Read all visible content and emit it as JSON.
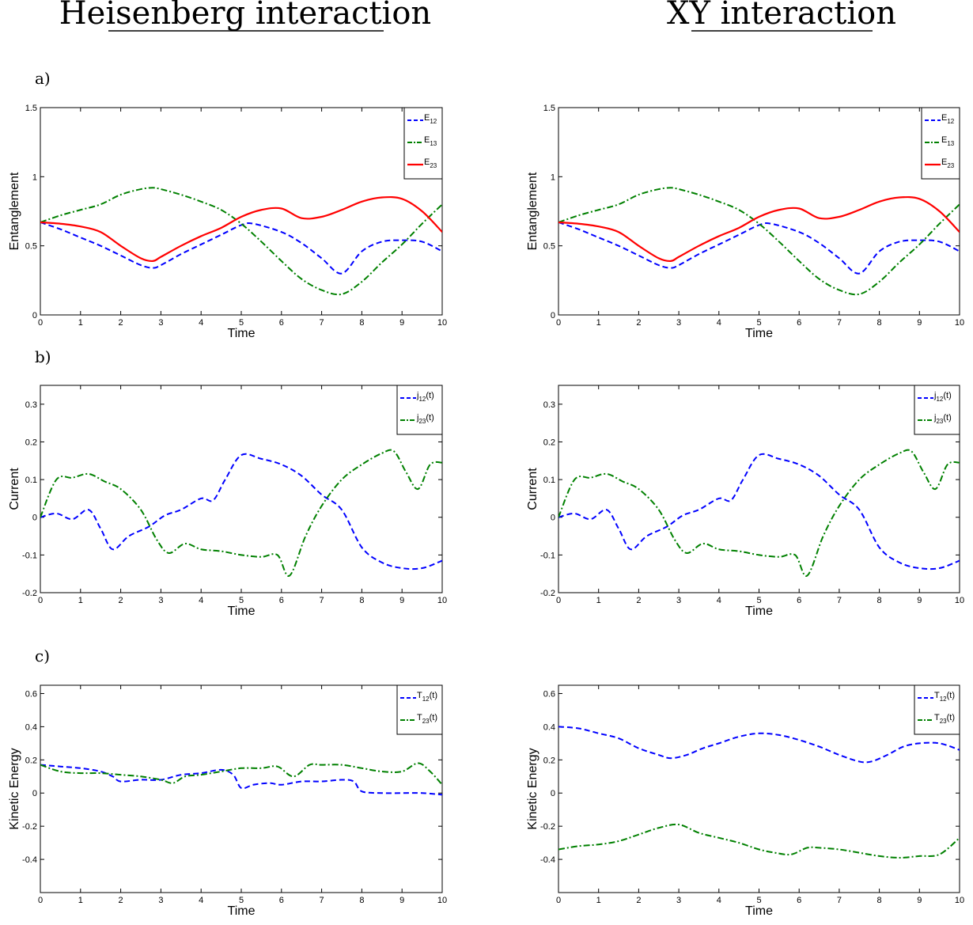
{
  "column_titles": [
    "Heisenberg interaction",
    "XY interaction"
  ],
  "panel_labels": [
    "a)",
    "b)",
    "c)"
  ],
  "chart_data": [
    {
      "type": "line",
      "id": "a-heis",
      "xlabel": "Time",
      "ylabel": "Entanglement",
      "xlim": [
        0,
        10
      ],
      "ylim": [
        0,
        1.5
      ],
      "xticks": [
        "0",
        "1",
        "2",
        "3",
        "4",
        "5",
        "6",
        "7",
        "8",
        "9",
        "10"
      ],
      "yticks": [
        "0",
        "0.5",
        "1",
        "1.5"
      ],
      "legend": "top-right",
      "series": [
        {
          "name": "E",
          "sub": "12",
          "color": "#0000ff",
          "dash": "dash",
          "x": [
            0,
            0.5,
            1,
            1.5,
            2,
            2.5,
            2.8,
            3,
            3.5,
            4,
            4.5,
            5,
            5.3,
            6,
            6.5,
            7,
            7.5,
            8,
            8.5,
            9,
            9.5,
            10
          ],
          "y": [
            0.67,
            0.62,
            0.56,
            0.5,
            0.43,
            0.36,
            0.34,
            0.36,
            0.44,
            0.51,
            0.58,
            0.65,
            0.66,
            0.6,
            0.52,
            0.41,
            0.3,
            0.46,
            0.53,
            0.54,
            0.53,
            0.46
          ]
        },
        {
          "name": "E",
          "sub": "13",
          "color": "#008000",
          "dash": "dashdot",
          "x": [
            0,
            0.5,
            1,
            1.5,
            2,
            2.5,
            2.8,
            3,
            3.5,
            4,
            4.5,
            5,
            5.5,
            6,
            6.5,
            7,
            7.5,
            8,
            8.5,
            9,
            9.5,
            10
          ],
          "y": [
            0.67,
            0.72,
            0.76,
            0.8,
            0.87,
            0.91,
            0.92,
            0.91,
            0.87,
            0.82,
            0.76,
            0.66,
            0.53,
            0.39,
            0.26,
            0.18,
            0.15,
            0.24,
            0.38,
            0.51,
            0.66,
            0.8
          ]
        },
        {
          "name": "E",
          "sub": "23",
          "color": "#ff0000",
          "dash": "solid",
          "x": [
            0,
            0.5,
            1,
            1.5,
            2,
            2.5,
            2.8,
            3,
            3.5,
            4,
            4.5,
            5,
            5.5,
            6,
            6.5,
            7,
            7.5,
            8,
            8.5,
            9,
            9.5,
            10
          ],
          "y": [
            0.67,
            0.66,
            0.64,
            0.6,
            0.5,
            0.41,
            0.39,
            0.42,
            0.5,
            0.57,
            0.63,
            0.71,
            0.76,
            0.77,
            0.7,
            0.71,
            0.76,
            0.82,
            0.85,
            0.84,
            0.75,
            0.6
          ]
        }
      ]
    },
    {
      "type": "line",
      "id": "a-xy",
      "xlabel": "Time",
      "ylabel": "Entanglement",
      "xlim": [
        0,
        10
      ],
      "ylim": [
        0,
        1.5
      ],
      "xticks": [
        "0",
        "1",
        "2",
        "3",
        "4",
        "5",
        "6",
        "7",
        "8",
        "9",
        "10"
      ],
      "yticks": [
        "0",
        "0.5",
        "1",
        "1.5"
      ],
      "legend": "top-right",
      "series": [
        {
          "name": "E",
          "sub": "12",
          "color": "#0000ff",
          "dash": "dash",
          "x": [
            0,
            0.5,
            1,
            1.5,
            2,
            2.5,
            2.8,
            3,
            3.5,
            4,
            4.5,
            5,
            5.3,
            6,
            6.5,
            7,
            7.5,
            8,
            8.5,
            9,
            9.5,
            10
          ],
          "y": [
            0.67,
            0.62,
            0.56,
            0.5,
            0.43,
            0.36,
            0.34,
            0.36,
            0.44,
            0.51,
            0.58,
            0.65,
            0.66,
            0.6,
            0.52,
            0.41,
            0.3,
            0.46,
            0.53,
            0.54,
            0.53,
            0.46
          ]
        },
        {
          "name": "E",
          "sub": "13",
          "color": "#008000",
          "dash": "dashdot",
          "x": [
            0,
            0.5,
            1,
            1.5,
            2,
            2.5,
            2.8,
            3,
            3.5,
            4,
            4.5,
            5,
            5.5,
            6,
            6.5,
            7,
            7.5,
            8,
            8.5,
            9,
            9.5,
            10
          ],
          "y": [
            0.67,
            0.72,
            0.76,
            0.8,
            0.87,
            0.91,
            0.92,
            0.91,
            0.87,
            0.82,
            0.76,
            0.66,
            0.53,
            0.39,
            0.26,
            0.18,
            0.15,
            0.24,
            0.38,
            0.51,
            0.66,
            0.8
          ]
        },
        {
          "name": "E",
          "sub": "23",
          "color": "#ff0000",
          "dash": "solid",
          "x": [
            0,
            0.5,
            1,
            1.5,
            2,
            2.5,
            2.8,
            3,
            3.5,
            4,
            4.5,
            5,
            5.5,
            6,
            6.5,
            7,
            7.5,
            8,
            8.5,
            9,
            9.5,
            10
          ],
          "y": [
            0.67,
            0.66,
            0.64,
            0.6,
            0.5,
            0.41,
            0.39,
            0.42,
            0.5,
            0.57,
            0.63,
            0.71,
            0.76,
            0.77,
            0.7,
            0.71,
            0.76,
            0.82,
            0.85,
            0.84,
            0.75,
            0.6
          ]
        }
      ]
    },
    {
      "type": "line",
      "id": "b-heis",
      "xlabel": "Time",
      "ylabel": "Current",
      "xlim": [
        0,
        10
      ],
      "ylim": [
        -0.2,
        0.35
      ],
      "xticks": [
        "0",
        "1",
        "2",
        "3",
        "4",
        "5",
        "6",
        "7",
        "8",
        "9",
        "10"
      ],
      "yticks": [
        "-0.2",
        "-0.1",
        "0",
        "0.1",
        "0.2",
        "0.3"
      ],
      "legend": "top-right",
      "series": [
        {
          "name": "j",
          "sub": "12",
          "suffix": "(t)",
          "color": "#0000ff",
          "dash": "dash",
          "x": [
            0,
            0.4,
            0.8,
            1.2,
            1.5,
            1.8,
            2.2,
            2.7,
            3.1,
            3.5,
            4,
            4.3,
            4.6,
            5,
            5.5,
            6,
            6.5,
            7,
            7.5,
            8,
            8.5,
            9,
            9.5,
            10
          ],
          "y": [
            0,
            0.01,
            -0.005,
            0.02,
            -0.03,
            -0.085,
            -0.05,
            -0.025,
            0.005,
            0.02,
            0.05,
            0.045,
            0.1,
            0.165,
            0.155,
            0.14,
            0.11,
            0.06,
            0.02,
            -0.08,
            -0.12,
            -0.135,
            -0.135,
            -0.115
          ]
        },
        {
          "name": "j",
          "sub": "23",
          "suffix": "(t)",
          "color": "#008000",
          "dash": "dashdot",
          "x": [
            0,
            0.4,
            0.8,
            1.2,
            1.6,
            2,
            2.5,
            2.9,
            3.2,
            3.6,
            4,
            4.5,
            5,
            5.5,
            5.9,
            6.2,
            6.6,
            7,
            7.5,
            8,
            8.5,
            8.8,
            9.1,
            9.4,
            9.7,
            10
          ],
          "y": [
            0,
            0.1,
            0.105,
            0.115,
            0.095,
            0.075,
            0.02,
            -0.06,
            -0.095,
            -0.07,
            -0.085,
            -0.09,
            -0.1,
            -0.105,
            -0.1,
            -0.155,
            -0.05,
            0.03,
            0.1,
            0.14,
            0.17,
            0.175,
            0.12,
            0.075,
            0.14,
            0.145
          ]
        }
      ]
    },
    {
      "type": "line",
      "id": "b-xy",
      "xlabel": "Time",
      "ylabel": "Current",
      "xlim": [
        0,
        10
      ],
      "ylim": [
        -0.2,
        0.35
      ],
      "xticks": [
        "0",
        "1",
        "2",
        "3",
        "4",
        "5",
        "6",
        "7",
        "8",
        "9",
        "10"
      ],
      "yticks": [
        "-0.2",
        "-0.1",
        "0",
        "0.1",
        "0.2",
        "0.3"
      ],
      "legend": "top-right",
      "series": [
        {
          "name": "j",
          "sub": "12",
          "suffix": "(t)",
          "color": "#0000ff",
          "dash": "dash",
          "x": [
            0,
            0.4,
            0.8,
            1.2,
            1.5,
            1.8,
            2.2,
            2.7,
            3.1,
            3.5,
            4,
            4.3,
            4.6,
            5,
            5.5,
            6,
            6.5,
            7,
            7.5,
            8,
            8.5,
            9,
            9.5,
            10
          ],
          "y": [
            0,
            0.01,
            -0.005,
            0.02,
            -0.03,
            -0.085,
            -0.05,
            -0.025,
            0.005,
            0.02,
            0.05,
            0.045,
            0.1,
            0.165,
            0.155,
            0.14,
            0.11,
            0.06,
            0.02,
            -0.08,
            -0.12,
            -0.135,
            -0.135,
            -0.115
          ]
        },
        {
          "name": "j",
          "sub": "23",
          "suffix": "(t)",
          "color": "#008000",
          "dash": "dashdot",
          "x": [
            0,
            0.4,
            0.8,
            1.2,
            1.6,
            2,
            2.5,
            2.9,
            3.2,
            3.6,
            4,
            4.5,
            5,
            5.5,
            5.9,
            6.2,
            6.6,
            7,
            7.5,
            8,
            8.5,
            8.8,
            9.1,
            9.4,
            9.7,
            10
          ],
          "y": [
            0,
            0.1,
            0.105,
            0.115,
            0.095,
            0.075,
            0.02,
            -0.06,
            -0.095,
            -0.07,
            -0.085,
            -0.09,
            -0.1,
            -0.105,
            -0.1,
            -0.155,
            -0.05,
            0.03,
            0.1,
            0.14,
            0.17,
            0.175,
            0.12,
            0.075,
            0.14,
            0.145
          ]
        }
      ]
    },
    {
      "type": "line",
      "id": "c-heis",
      "xlabel": "Time",
      "ylabel": "Kinetic Energy",
      "xlim": [
        0,
        10
      ],
      "ylim": [
        -0.6,
        0.65
      ],
      "xticks": [
        "0",
        "1",
        "2",
        "3",
        "4",
        "5",
        "6",
        "7",
        "8",
        "9",
        "10"
      ],
      "yticks": [
        "-0.4",
        "-0.2",
        "0",
        "0.2",
        "0.4",
        "0.6"
      ],
      "legend": "top-right",
      "series": [
        {
          "name": "T",
          "sub": "12",
          "suffix": "(t)",
          "color": "#0000ff",
          "dash": "dash",
          "x": [
            0,
            0.5,
            1,
            1.5,
            1.8,
            2,
            2.5,
            3,
            3.5,
            4,
            4.5,
            4.8,
            5,
            5.3,
            5.7,
            6,
            6.5,
            7,
            7.5,
            7.8,
            8,
            8.5,
            9,
            9.5,
            10
          ],
          "y": [
            0.17,
            0.16,
            0.15,
            0.13,
            0.1,
            0.07,
            0.08,
            0.08,
            0.11,
            0.12,
            0.14,
            0.11,
            0.03,
            0.05,
            0.06,
            0.05,
            0.07,
            0.07,
            0.08,
            0.07,
            0.01,
            0,
            0,
            0,
            -0.01
          ]
        },
        {
          "name": "T",
          "sub": "23",
          "suffix": "(t)",
          "color": "#008000",
          "dash": "dashdot",
          "x": [
            0,
            0.5,
            1,
            1.5,
            2,
            2.5,
            3,
            3.3,
            3.6,
            4,
            4.5,
            5,
            5.5,
            5.9,
            6.3,
            6.7,
            7,
            7.5,
            8,
            8.5,
            9,
            9.4,
            9.7,
            10
          ],
          "y": [
            0.17,
            0.13,
            0.12,
            0.12,
            0.11,
            0.1,
            0.08,
            0.06,
            0.1,
            0.11,
            0.13,
            0.15,
            0.15,
            0.16,
            0.1,
            0.17,
            0.17,
            0.17,
            0.15,
            0.13,
            0.13,
            0.18,
            0.13,
            0.05
          ]
        }
      ]
    },
    {
      "type": "line",
      "id": "c-xy",
      "xlabel": "Time",
      "ylabel": "Kinetic Energy",
      "xlim": [
        0,
        10
      ],
      "ylim": [
        -0.6,
        0.65
      ],
      "xticks": [
        "0",
        "1",
        "2",
        "3",
        "4",
        "5",
        "6",
        "7",
        "8",
        "9",
        "10"
      ],
      "yticks": [
        "-0.4",
        "-0.2",
        "0",
        "0.2",
        "0.4",
        "0.6"
      ],
      "legend": "top-right",
      "series": [
        {
          "name": "T",
          "sub": "12",
          "suffix": "(t)",
          "color": "#0000ff",
          "dash": "dash",
          "x": [
            0,
            0.5,
            1,
            1.5,
            2,
            2.5,
            2.8,
            3.2,
            3.6,
            4,
            4.5,
            5,
            5.5,
            6,
            6.5,
            7,
            7.5,
            7.8,
            8.2,
            8.6,
            9,
            9.5,
            10
          ],
          "y": [
            0.4,
            0.39,
            0.36,
            0.33,
            0.27,
            0.23,
            0.21,
            0.23,
            0.27,
            0.3,
            0.34,
            0.36,
            0.35,
            0.32,
            0.28,
            0.23,
            0.19,
            0.19,
            0.23,
            0.28,
            0.3,
            0.3,
            0.26
          ]
        },
        {
          "name": "T",
          "sub": "23",
          "suffix": "(t)",
          "color": "#008000",
          "dash": "dashdot",
          "x": [
            0,
            0.5,
            1,
            1.5,
            2,
            2.5,
            3,
            3.5,
            4,
            4.5,
            5,
            5.4,
            5.8,
            6.2,
            6.5,
            7,
            7.5,
            8,
            8.5,
            9,
            9.5,
            10
          ],
          "y": [
            -0.34,
            -0.32,
            -0.31,
            -0.29,
            -0.25,
            -0.21,
            -0.19,
            -0.24,
            -0.27,
            -0.3,
            -0.34,
            -0.36,
            -0.37,
            -0.33,
            -0.33,
            -0.34,
            -0.36,
            -0.38,
            -0.39,
            -0.38,
            -0.37,
            -0.27
          ]
        }
      ]
    }
  ]
}
